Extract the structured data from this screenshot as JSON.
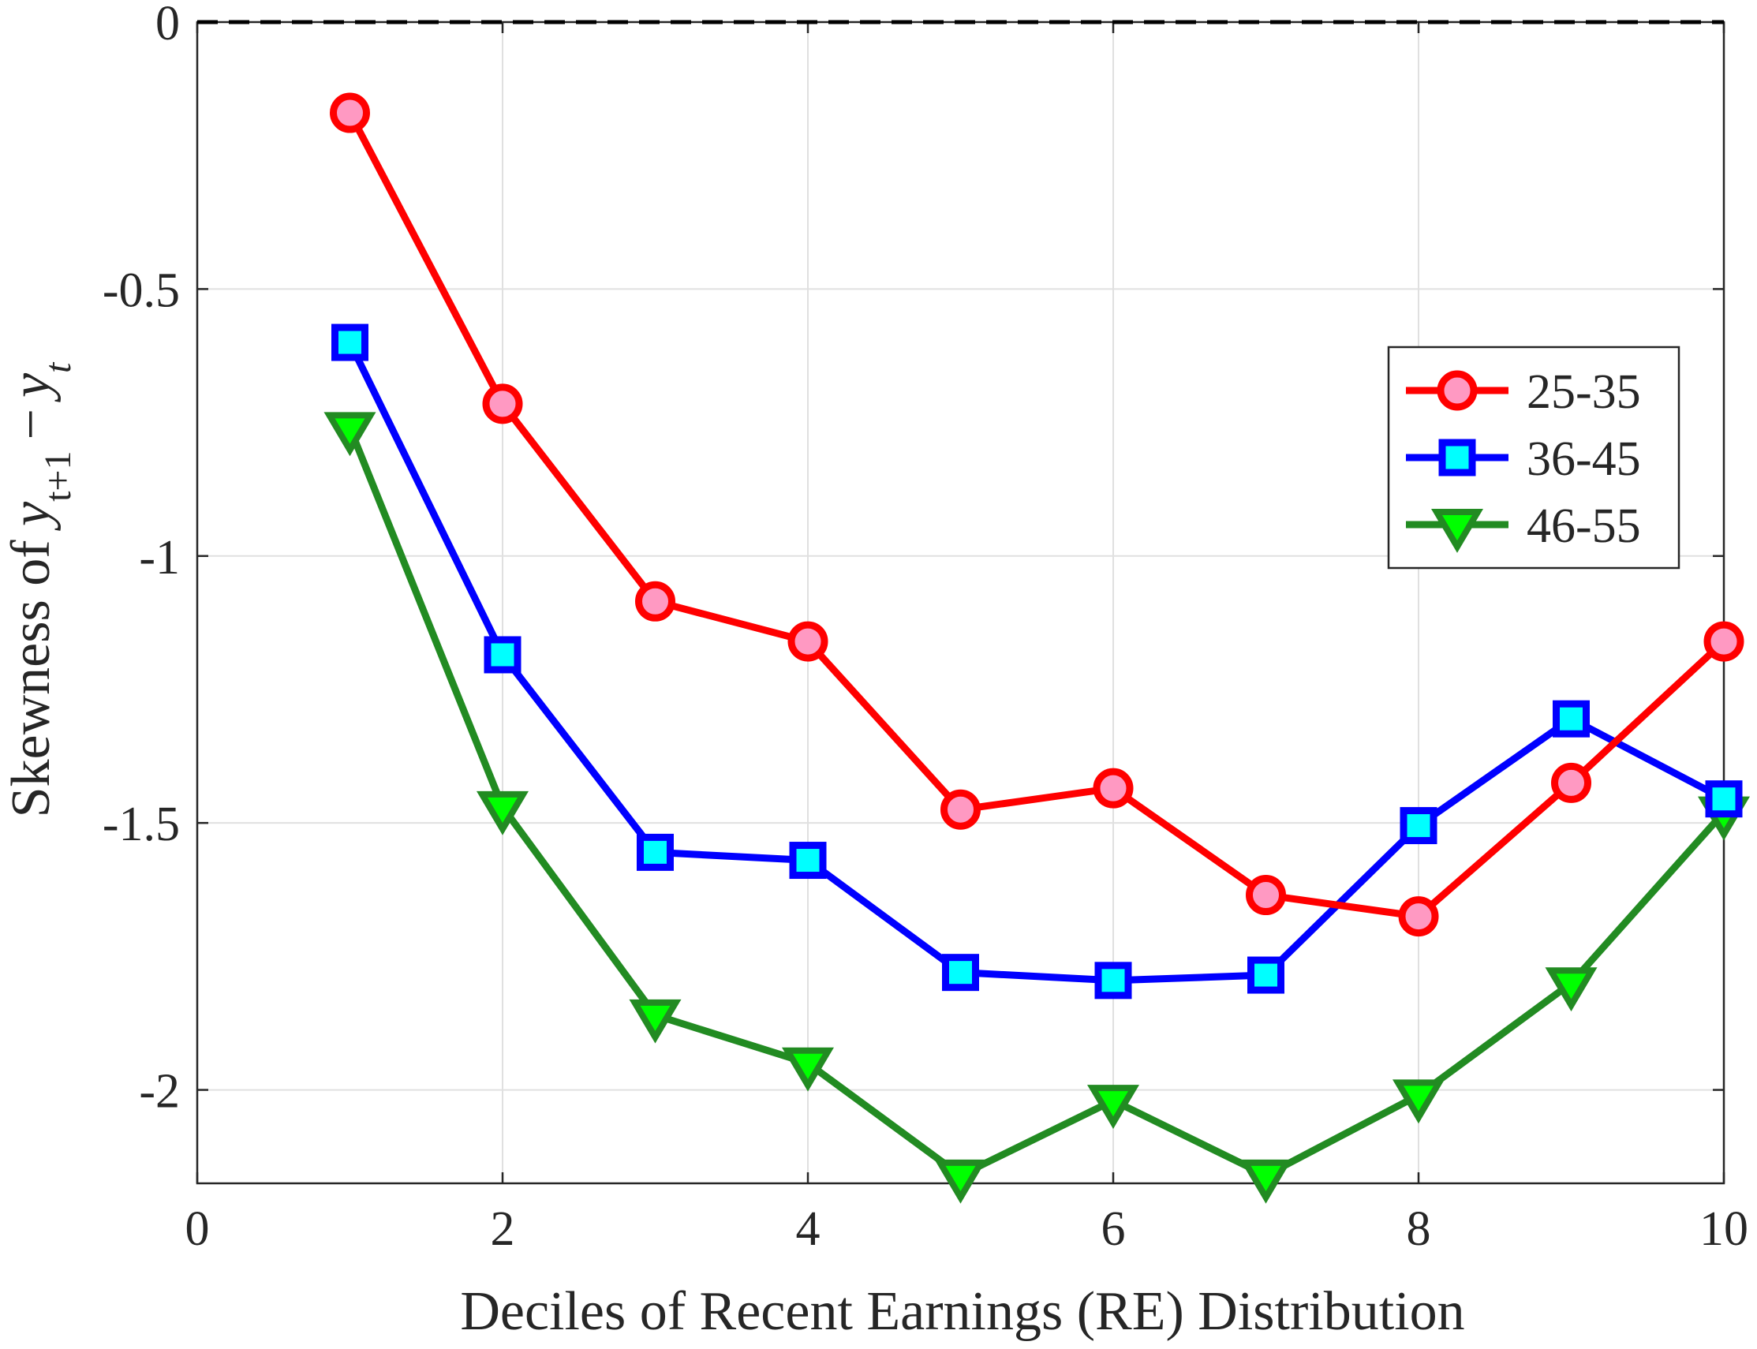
{
  "chart_data": {
    "type": "line",
    "xlabel": "Deciles of Recent Earnings (RE) Distribution",
    "ylabel_prefix": "Skewness of ",
    "ylabel_math": "y_{t+1} − y_t",
    "xlim": [
      0,
      10
    ],
    "ylim": [
      -2.175,
      0
    ],
    "x_ticks": [
      0,
      2,
      4,
      6,
      8,
      10
    ],
    "y_ticks": [
      0,
      -0.5,
      -1,
      -1.5,
      -2
    ],
    "x_tick_labels": [
      "0",
      "2",
      "4",
      "6",
      "8",
      "10"
    ],
    "y_tick_labels": [
      "0",
      "-0.5",
      "-1",
      "-1.5",
      "-2"
    ],
    "grid": true,
    "reference_line": {
      "y": 0,
      "style": "dashed",
      "color": "#000000"
    },
    "legend_position": "right",
    "x": [
      1,
      2,
      3,
      4,
      5,
      6,
      7,
      8,
      9,
      10
    ],
    "series": [
      {
        "name": "25-35",
        "color": "#ff0000",
        "marker": "circle",
        "marker_fill": "#ff99c2",
        "values": [
          -0.17,
          -0.715,
          -1.085,
          -1.16,
          -1.475,
          -1.435,
          -1.635,
          -1.675,
          -1.425,
          -1.16
        ]
      },
      {
        "name": "36-45",
        "color": "#0000ff",
        "marker": "square",
        "marker_fill": "#00ffff",
        "values": [
          -0.6,
          -1.185,
          -1.555,
          -1.57,
          -1.78,
          -1.795,
          -1.785,
          -1.505,
          -1.305,
          -1.455
        ]
      },
      {
        "name": "46-55",
        "color": "#228b22",
        "marker": "triangle-down",
        "marker_fill": "#00ff00",
        "values": [
          -0.76,
          -1.47,
          -1.86,
          -1.95,
          -2.16,
          -2.02,
          -2.16,
          -2.01,
          -1.8,
          -1.48
        ]
      }
    ]
  }
}
